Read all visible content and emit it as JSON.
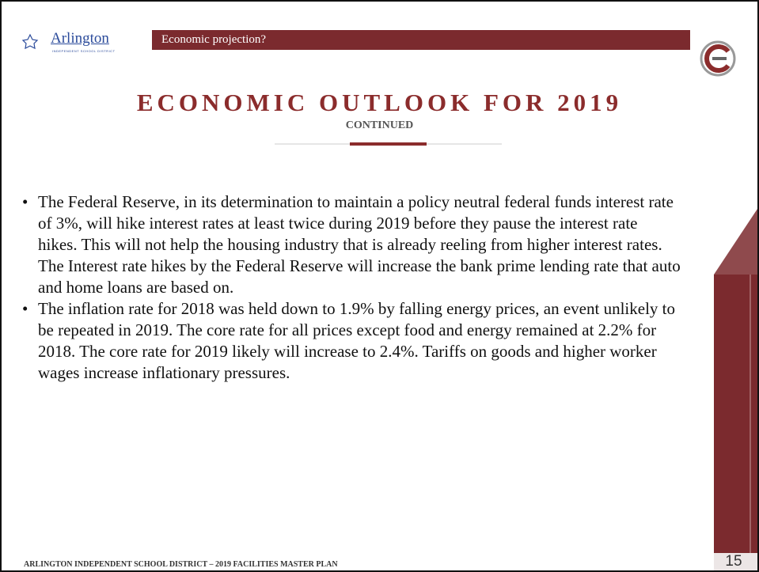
{
  "header": {
    "logo_name": "Arlington",
    "logo_sub": "INDEPENDENT SCHOOL DISTRICT",
    "section": "Economic projection?"
  },
  "title": "ECONOMIC OUTLOOK FOR 2019",
  "subtitle": "CONTINUED",
  "bullets": [
    "The Federal Reserve, in its determination to maintain a policy neutral federal funds interest rate of 3%, will hike interest rates at least twice during 2019 before they pause the interest rate hikes. This will not help the housing industry that is already reeling from higher interest rates. The Interest rate hikes by the Federal Reserve will increase the bank prime lending rate that auto and home loans are based on.",
    "The inflation rate for 2018 was held down to 1.9% by falling energy prices, an event unlikely to be repeated in 2019. The core rate for all prices except food and energy remained at 2.2% for 2018. The core rate for 2019 likely will increase to 2.4%. Tariffs on goods and higher worker wages increase inflationary pressures."
  ],
  "footer": "ARLINGTON INDEPENDENT SCHOOL DISTRICT – 2019 FACILITIES MASTER PLAN",
  "page_number": "15"
}
